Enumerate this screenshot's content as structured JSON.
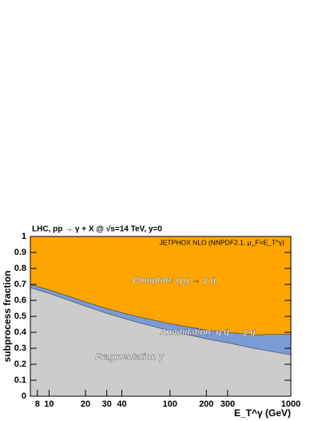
{
  "chart_data": {
    "type": "stacked-area",
    "title": "LHC, pp → γ + X @ √s=14 TeV, y=0",
    "y_label": "subprocess fraction",
    "x_label": "E_T^γ (GeV)",
    "annotations": [
      "JETPHOX NLO (NNPDF2.1, μ_F=E_T^γ)",
      "Compton: q g → γ q",
      "Annihilation: q q̄ → γ g",
      "Fragmentation γ"
    ],
    "x_log": true,
    "x": [
      7,
      10,
      20,
      30,
      50,
      100,
      200,
      300,
      500,
      1000
    ],
    "series": [
      {
        "name": "Fragmentation",
        "color": "#cccccc",
        "values": [
          0.68,
          0.645,
          0.565,
          0.52,
          0.47,
          0.41,
          0.36,
          0.335,
          0.3,
          0.26
        ]
      },
      {
        "name": "Annihilation",
        "color": "#7b9bd6",
        "values": [
          0.02,
          0.022,
          0.027,
          0.03,
          0.035,
          0.045,
          0.055,
          0.065,
          0.085,
          0.13
        ]
      },
      {
        "name": "Compton",
        "color": "#ffa500",
        "values": [
          0.3,
          0.333,
          0.408,
          0.45,
          0.495,
          0.545,
          0.585,
          0.6,
          0.615,
          0.61
        ]
      }
    ],
    "xlim": [
      7,
      1000
    ],
    "ylim": [
      0,
      1
    ],
    "xticks": [
      8,
      10,
      20,
      30,
      40,
      100,
      200,
      300,
      1000
    ],
    "yticks": [
      0,
      0.1,
      0.2,
      0.3,
      0.4,
      0.5,
      0.6,
      0.7,
      0.8,
      0.9,
      1
    ]
  }
}
